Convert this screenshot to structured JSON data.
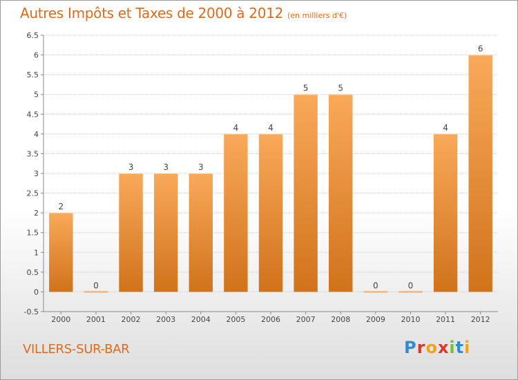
{
  "title": "Autres Impôts et Taxes de 2000 à 2012",
  "subtitle": "(en milliers d'€)",
  "commune": "VILLERS-SUR-BAR",
  "logo": {
    "text": "Proxiti",
    "colors": [
      "#2e8bd8",
      "#e2332a",
      "#f1a415",
      "#7dbb2f"
    ]
  },
  "colors": {
    "accent": "#e06a1a",
    "bar_top": "#f9a95a",
    "bar_bottom": "#d0731b",
    "grid": "#cccccc"
  },
  "chart_data": {
    "type": "bar",
    "title": "Autres Impôts et Taxes de 2000 à 2012",
    "subtitle": "(en milliers d'€)",
    "categories": [
      "2000",
      "2001",
      "2002",
      "2003",
      "2004",
      "2005",
      "2006",
      "2007",
      "2008",
      "2009",
      "2010",
      "2011",
      "2012"
    ],
    "values": [
      2,
      0,
      3,
      3,
      3,
      4,
      4,
      5,
      5,
      0,
      0,
      4,
      6
    ],
    "data_labels": [
      "2",
      "0",
      "3",
      "3",
      "3",
      "4",
      "4",
      "5",
      "5",
      "0",
      "0",
      "4",
      "6"
    ],
    "y_ticks": [
      "-0.5",
      "0",
      "0.5",
      "1",
      "1.5",
      "2",
      "2.5",
      "3",
      "3.5",
      "4",
      "4.5",
      "5",
      "5.5",
      "6",
      "6.5"
    ],
    "ylim": [
      -0.5,
      6.5
    ],
    "grid": true,
    "legend": "none"
  }
}
